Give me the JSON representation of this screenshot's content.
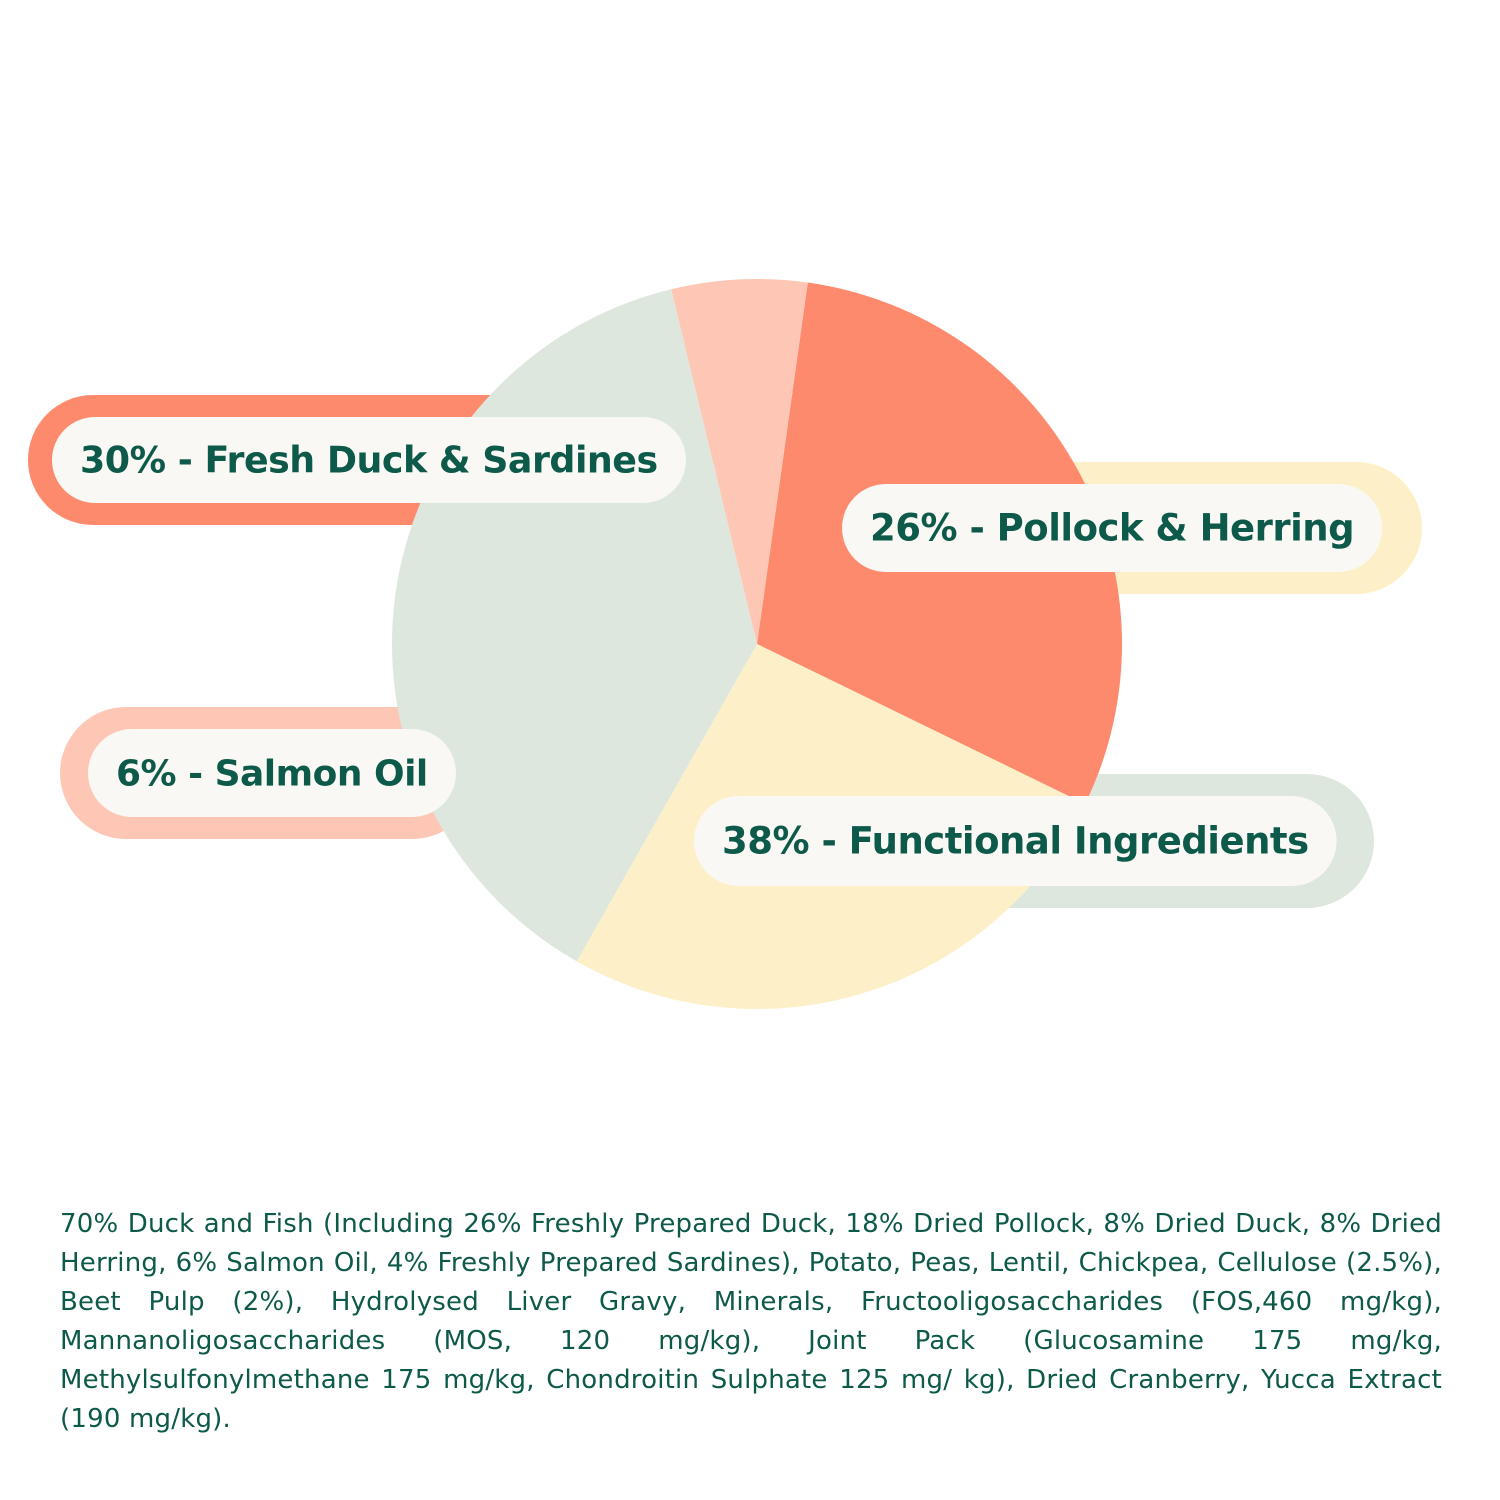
{
  "chart_data": {
    "type": "pie",
    "slices": [
      {
        "label": "30% - Fresh Duck & Sardines",
        "value": 30,
        "color": "#fe8a6d",
        "outer_color": "#fe8a6d"
      },
      {
        "label": "26% - Pollock & Herring",
        "value": 26,
        "color": "#fdf0c8",
        "outer_color": "#fdf0c8"
      },
      {
        "label": "38% - Functional Ingredients",
        "value": 38,
        "color": "#dde7de",
        "outer_color": "#dde7de"
      },
      {
        "label": "6% - Salmon Oil",
        "value": 6,
        "color": "#fec7b5",
        "outer_color": "#fec7b5"
      }
    ],
    "label_text_color": "#0e5a4a",
    "label_pill_color": "#f9f8f4"
  },
  "ingredients_text": "70% Duck and Fish (Including 26% Freshly Prepared Duck, 18% Dried Pollock, 8% Dried Duck, 8% Dried Herring, 6% Salmon Oil, 4% Freshly Prepared Sardines), Potato, Peas, Lentil, Chickpea, Cellulose (2.5%), Beet Pulp (2%), Hydrolysed Liver Gravy, Minerals, Fructooligosaccharides (FOS,460 mg/kg), Mannanoligosaccharides (MOS, 120 mg/kg), Joint Pack (Glucosamine 175 mg/kg, Methylsulfonylmethane 175 mg/kg, Chondroitin Sulphate 125 mg/ kg), Dried Cranberry, Yucca Extract (190 mg/kg)."
}
